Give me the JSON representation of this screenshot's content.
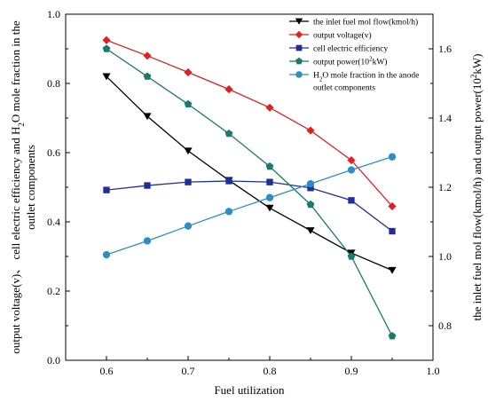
{
  "chart_data": {
    "type": "line",
    "x": [
      0.6,
      0.65,
      0.7,
      0.75,
      0.8,
      0.85,
      0.9,
      0.95
    ],
    "xlabel": "Fuel utilization",
    "xlim": [
      0.55,
      1.0
    ],
    "xticks": [
      "0.6",
      "0.7",
      "0.8",
      "0.9",
      "1.0"
    ],
    "ylabel_left_lines": [
      "output voltage(v)、 cell electric efficiency and H",
      "2",
      "O mole fraction in the",
      "outlet components"
    ],
    "ylim_left": [
      0.0,
      1.0
    ],
    "yticks_left": [
      "0.0",
      "0.2",
      "0.4",
      "0.6",
      "0.8",
      "1.0"
    ],
    "ylabel_right": [
      "the inlet fuel mol flow(kmol/h) and output power(10",
      "2",
      "kW)"
    ],
    "ylim_right": [
      0.7,
      1.7
    ],
    "yticks_right": [
      "0.8",
      "1.0",
      "1.2",
      "1.4",
      "1.6"
    ],
    "grid": false,
    "legend_position": "top-right",
    "series": [
      {
        "name": "the inlet fuel mol flow(kmol/h)",
        "axis": "right",
        "marker": "triangle-down",
        "color": "#000000",
        "values": [
          1.52,
          1.405,
          1.305,
          1.22,
          1.14,
          1.075,
          1.01,
          0.96
        ]
      },
      {
        "name": "output voltage(v)",
        "axis": "left",
        "marker": "diamond",
        "color": "#e02020",
        "values": [
          0.925,
          0.88,
          0.832,
          0.783,
          0.73,
          0.664,
          0.578,
          0.445
        ]
      },
      {
        "name": "cell electric efficiency",
        "axis": "left",
        "marker": "square",
        "color": "#1f2f9a",
        "values": [
          0.492,
          0.505,
          0.515,
          0.518,
          0.515,
          0.498,
          0.462,
          0.373
        ]
      },
      {
        "name": "output power(10^2kW)",
        "name_parts": [
          "output power(10",
          "2",
          "kW)"
        ],
        "axis": "right",
        "marker": "pentagon",
        "color": "#1a7a6e",
        "values": [
          1.6,
          1.52,
          1.44,
          1.355,
          1.26,
          1.15,
          1.0,
          0.77
        ]
      },
      {
        "name": "H2O mole fraction in the anode outlet components",
        "name_parts": [
          "H",
          "2",
          "O mole fraction in the anode",
          "outlet components"
        ],
        "axis": "left",
        "marker": "circle",
        "color": "#2a8fc8",
        "values": [
          0.305,
          0.345,
          0.388,
          0.43,
          0.47,
          0.51,
          0.55,
          0.588
        ]
      }
    ]
  }
}
